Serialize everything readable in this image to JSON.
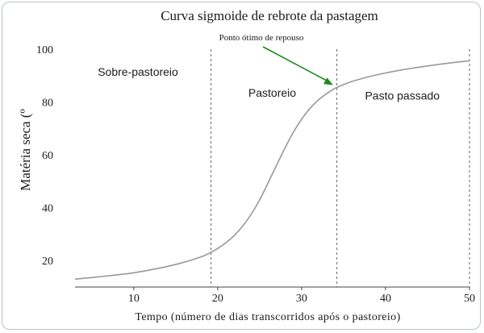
{
  "chart_data": {
    "type": "line",
    "title": "Curva sigmoide de rebrote da pastagem",
    "xlabel": "Tempo (número de dias transcorridos após o pastoreio)",
    "ylabel": "Matéria seca (º",
    "xlim": [
      3,
      50
    ],
    "ylim": [
      10,
      100
    ],
    "x_ticks": [
      10,
      20,
      30,
      40,
      50
    ],
    "y_ticks": [
      20,
      40,
      60,
      80,
      100
    ],
    "grid": false,
    "series": [
      {
        "x": [
          3,
          5,
          8,
          10,
          12,
          14,
          16,
          18,
          19,
          20,
          21,
          22,
          23,
          24,
          25,
          26,
          27,
          28,
          29,
          30,
          31,
          32,
          33,
          34,
          35,
          36,
          38,
          40,
          42,
          44,
          46,
          48,
          50
        ],
        "y": [
          13,
          13.6,
          14.6,
          15.4,
          16.5,
          17.8,
          19.4,
          21.4,
          22.8,
          24.6,
          26.8,
          29.6,
          33.2,
          37.6,
          43,
          49.4,
          56,
          62.5,
          68.5,
          73.5,
          77.6,
          80.8,
          83.2,
          85.2,
          86.6,
          87.8,
          89.6,
          91,
          92.2,
          93.2,
          94.1,
          94.9,
          95.6
        ],
        "color": "#999999"
      }
    ],
    "dividers_x": [
      19.2,
      34.2,
      50
    ],
    "regions": [
      {
        "label": "Sobre-pastoreio",
        "x": 10.5,
        "y": 90
      },
      {
        "label": "Pastoreio",
        "x": 26.5,
        "y": 82
      },
      {
        "label": "Pasto passado",
        "x": 42,
        "y": 81
      }
    ],
    "annotation": {
      "text": "Ponto ótimo de repouso",
      "point": [
        34,
        86
      ],
      "arrow_color": "#1e8a1e"
    }
  }
}
